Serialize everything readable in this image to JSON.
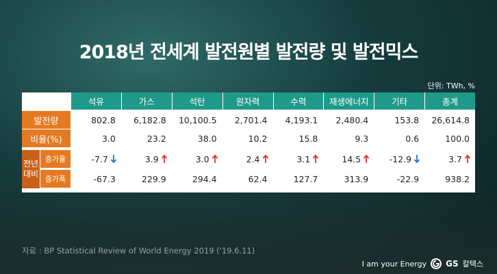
{
  "title": "2018년 전세계 발전원별 발전량 및 발전믹스",
  "unit": "단위: TWh, %",
  "table": {
    "columns": [
      "석유",
      "가스",
      "석탄",
      "원자력",
      "수력",
      "재생에너지",
      "기타",
      "총계"
    ],
    "rows": [
      {
        "label": "발전량",
        "cells": [
          "802.8",
          "6,182.8",
          "10,100.5",
          "2,701.4",
          "4,193.1",
          "2,480.4",
          "153.8",
          "26,614.8"
        ]
      },
      {
        "label": "비율(%)",
        "cells": [
          "3.0",
          "23.2",
          "38.0",
          "10.2",
          "15.8",
          "9.3",
          "0.6",
          "100.0"
        ]
      }
    ],
    "group": {
      "label": [
        "전년",
        "대비"
      ],
      "rows": [
        {
          "label": "증가율",
          "cells": [
            "-7.7",
            "3.9",
            "3.0",
            "2.4",
            "3.1",
            "14.5",
            "-12.9",
            "3.7"
          ]
        },
        {
          "label": "증가폭",
          "cells": [
            "-67.3",
            "229.9",
            "294.4",
            "62.4",
            "127.7",
            "313.9",
            "-22.9",
            "938.2"
          ]
        }
      ]
    }
  },
  "source": "자료 : BP Statistical Review of World Energy 2019 ('19.6.11)",
  "brand": {
    "slogan": "I am your Energy",
    "logo": "GS",
    "company": "칼텍스"
  }
}
